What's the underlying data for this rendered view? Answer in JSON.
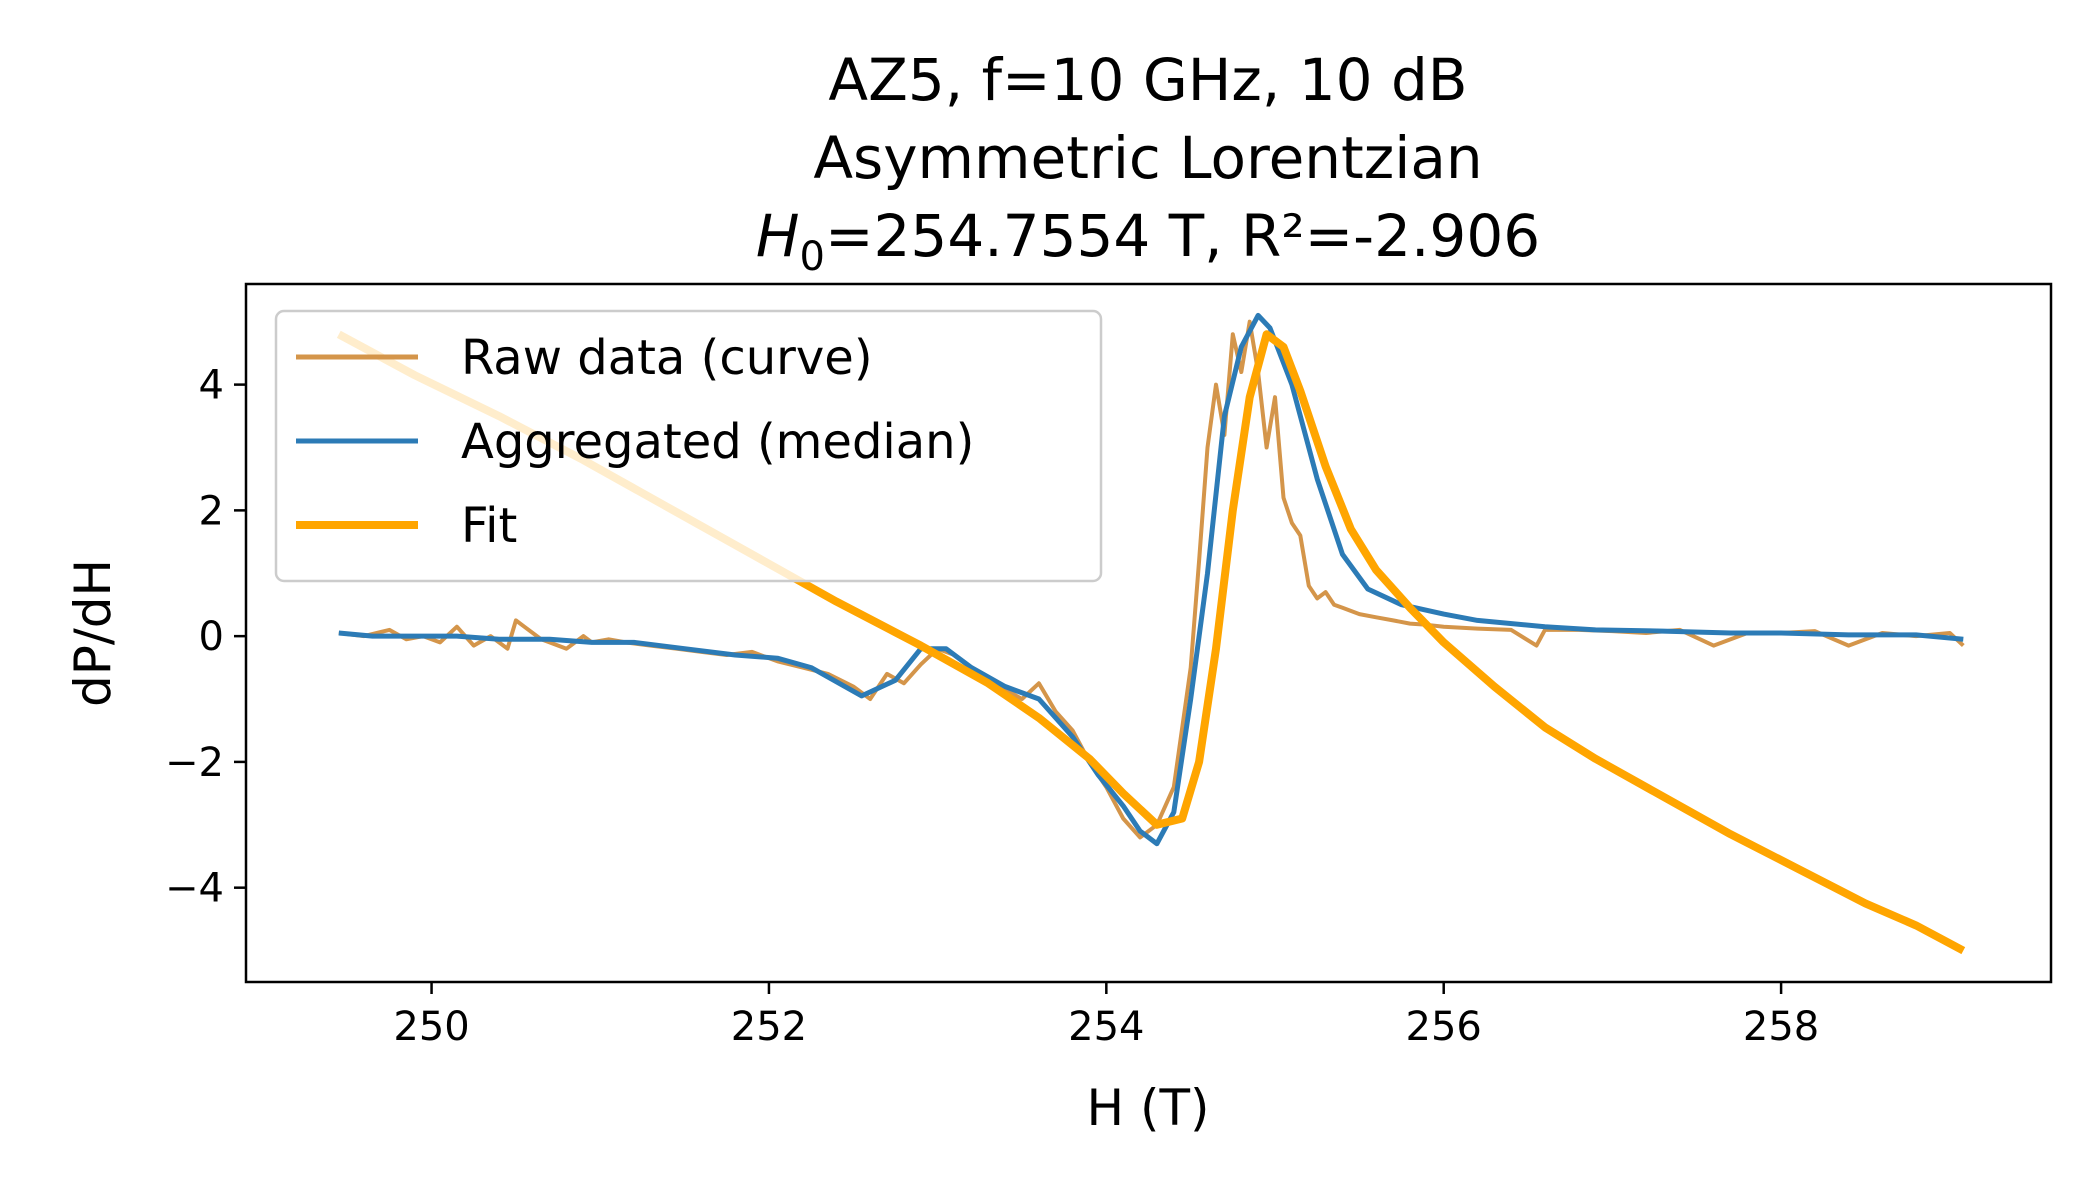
{
  "chart_data": {
    "type": "line",
    "title_lines": [
      "AZ5, f=10 GHz, 10 dB",
      "Asymmetric Lorentzian"
    ],
    "title_line3": {
      "symbol": "H",
      "subscript": "0",
      "rest": "=254.7554 T, R²=-2.906"
    },
    "xlabel": "H (T)",
    "ylabel": "dP/dH",
    "xlim": [
      248.9,
      259.6
    ],
    "ylim": [
      -5.5,
      5.6
    ],
    "xticks": [
      250,
      252,
      254,
      256,
      258
    ],
    "yticks": [
      -4,
      -2,
      0,
      2,
      4
    ],
    "xtick_labels": [
      "250",
      "252",
      "254",
      "256",
      "258"
    ],
    "ytick_labels": [
      "−4",
      "−2",
      "0",
      "2",
      "4"
    ],
    "legend": {
      "position": "upper-left"
    },
    "series": [
      {
        "name": "Raw data (curve)",
        "color": "#d4954a",
        "x": [
          249.45,
          249.6,
          249.75,
          249.85,
          249.95,
          250.05,
          250.15,
          250.25,
          250.35,
          250.45,
          250.5,
          250.55,
          250.65,
          250.7,
          250.8,
          250.9,
          250.95,
          251.05,
          251.15,
          251.3,
          251.45,
          251.6,
          251.75,
          251.9,
          252.05,
          252.2,
          252.35,
          252.5,
          252.6,
          252.7,
          252.8,
          252.9,
          253.0,
          253.1,
          253.2,
          253.3,
          253.4,
          253.5,
          253.6,
          253.7,
          253.8,
          253.9,
          254.0,
          254.1,
          254.2,
          254.3,
          254.4,
          254.5,
          254.55,
          254.6,
          254.65,
          254.7,
          254.75,
          254.8,
          254.85,
          254.9,
          254.95,
          255.0,
          255.05,
          255.1,
          255.15,
          255.2,
          255.25,
          255.3,
          255.35,
          255.4,
          255.5,
          255.6,
          255.7,
          255.8,
          255.9,
          256.0,
          256.2,
          256.4,
          256.55,
          256.6,
          256.8,
          257.0,
          257.2,
          257.4,
          257.6,
          257.8,
          258.0,
          258.2,
          258.4,
          258.6,
          258.8,
          259.0,
          259.08
        ],
        "y": [
          0.05,
          0.0,
          0.1,
          -0.05,
          0.0,
          -0.1,
          0.15,
          -0.15,
          0.0,
          -0.2,
          0.25,
          0.15,
          -0.05,
          -0.1,
          -0.2,
          0.0,
          -0.1,
          -0.05,
          -0.1,
          -0.15,
          -0.2,
          -0.25,
          -0.3,
          -0.25,
          -0.4,
          -0.5,
          -0.6,
          -0.8,
          -1.0,
          -0.6,
          -0.75,
          -0.45,
          -0.2,
          -0.3,
          -0.5,
          -0.7,
          -0.85,
          -1.0,
          -0.75,
          -1.2,
          -1.5,
          -2.0,
          -2.4,
          -2.9,
          -3.2,
          -3.0,
          -2.4,
          -0.5,
          1.2,
          3.0,
          4.0,
          3.2,
          4.8,
          4.2,
          5.0,
          4.2,
          3.0,
          3.8,
          2.2,
          1.8,
          1.6,
          0.8,
          0.6,
          0.7,
          0.5,
          0.45,
          0.35,
          0.3,
          0.25,
          0.2,
          0.18,
          0.15,
          0.12,
          0.1,
          -0.15,
          0.1,
          0.1,
          0.08,
          0.05,
          0.1,
          -0.15,
          0.05,
          0.05,
          0.08,
          -0.15,
          0.05,
          0.0,
          0.05,
          -0.15
        ]
      },
      {
        "name": "Aggregated (median)",
        "color": "#2c7bb6",
        "x": [
          249.45,
          249.65,
          249.9,
          250.15,
          250.4,
          250.7,
          250.95,
          251.2,
          251.5,
          251.8,
          252.05,
          252.25,
          252.55,
          252.75,
          252.9,
          253.05,
          253.2,
          253.4,
          253.6,
          253.8,
          253.95,
          254.1,
          254.2,
          254.3,
          254.4,
          254.5,
          254.6,
          254.7,
          254.8,
          254.9,
          254.97,
          255.1,
          255.25,
          255.4,
          255.55,
          255.75,
          256.0,
          256.2,
          256.6,
          256.9,
          257.3,
          257.7,
          258.0,
          258.4,
          258.8,
          259.08
        ],
        "y": [
          0.05,
          0.0,
          0.0,
          0.0,
          -0.05,
          -0.05,
          -0.1,
          -0.1,
          -0.2,
          -0.3,
          -0.35,
          -0.5,
          -0.95,
          -0.7,
          -0.2,
          -0.2,
          -0.5,
          -0.8,
          -1.0,
          -1.6,
          -2.2,
          -2.7,
          -3.1,
          -3.3,
          -2.8,
          -1.0,
          1.0,
          3.5,
          4.6,
          5.1,
          4.9,
          4.0,
          2.5,
          1.3,
          0.75,
          0.5,
          0.35,
          0.25,
          0.15,
          0.1,
          0.08,
          0.05,
          0.05,
          0.02,
          0.02,
          -0.05
        ]
      },
      {
        "name": "Fit",
        "color": "#ffa500",
        "x": [
          249.45,
          249.9,
          250.4,
          250.9,
          251.4,
          251.9,
          252.4,
          252.9,
          253.3,
          253.6,
          253.9,
          254.1,
          254.3,
          254.45,
          254.55,
          254.65,
          254.75,
          254.85,
          254.95,
          255.05,
          255.15,
          255.3,
          255.45,
          255.6,
          255.8,
          256.0,
          256.3,
          256.6,
          256.9,
          257.3,
          257.7,
          258.1,
          258.5,
          258.8,
          259.08
        ],
        "y": [
          4.8,
          4.15,
          3.5,
          2.8,
          2.05,
          1.3,
          0.55,
          -0.15,
          -0.75,
          -1.3,
          -1.95,
          -2.5,
          -3.0,
          -2.9,
          -2.0,
          -0.2,
          2.0,
          3.8,
          4.8,
          4.6,
          3.9,
          2.7,
          1.7,
          1.05,
          0.45,
          -0.1,
          -0.8,
          -1.45,
          -1.95,
          -2.55,
          -3.15,
          -3.7,
          -4.25,
          -4.6,
          -5.0
        ]
      }
    ]
  }
}
